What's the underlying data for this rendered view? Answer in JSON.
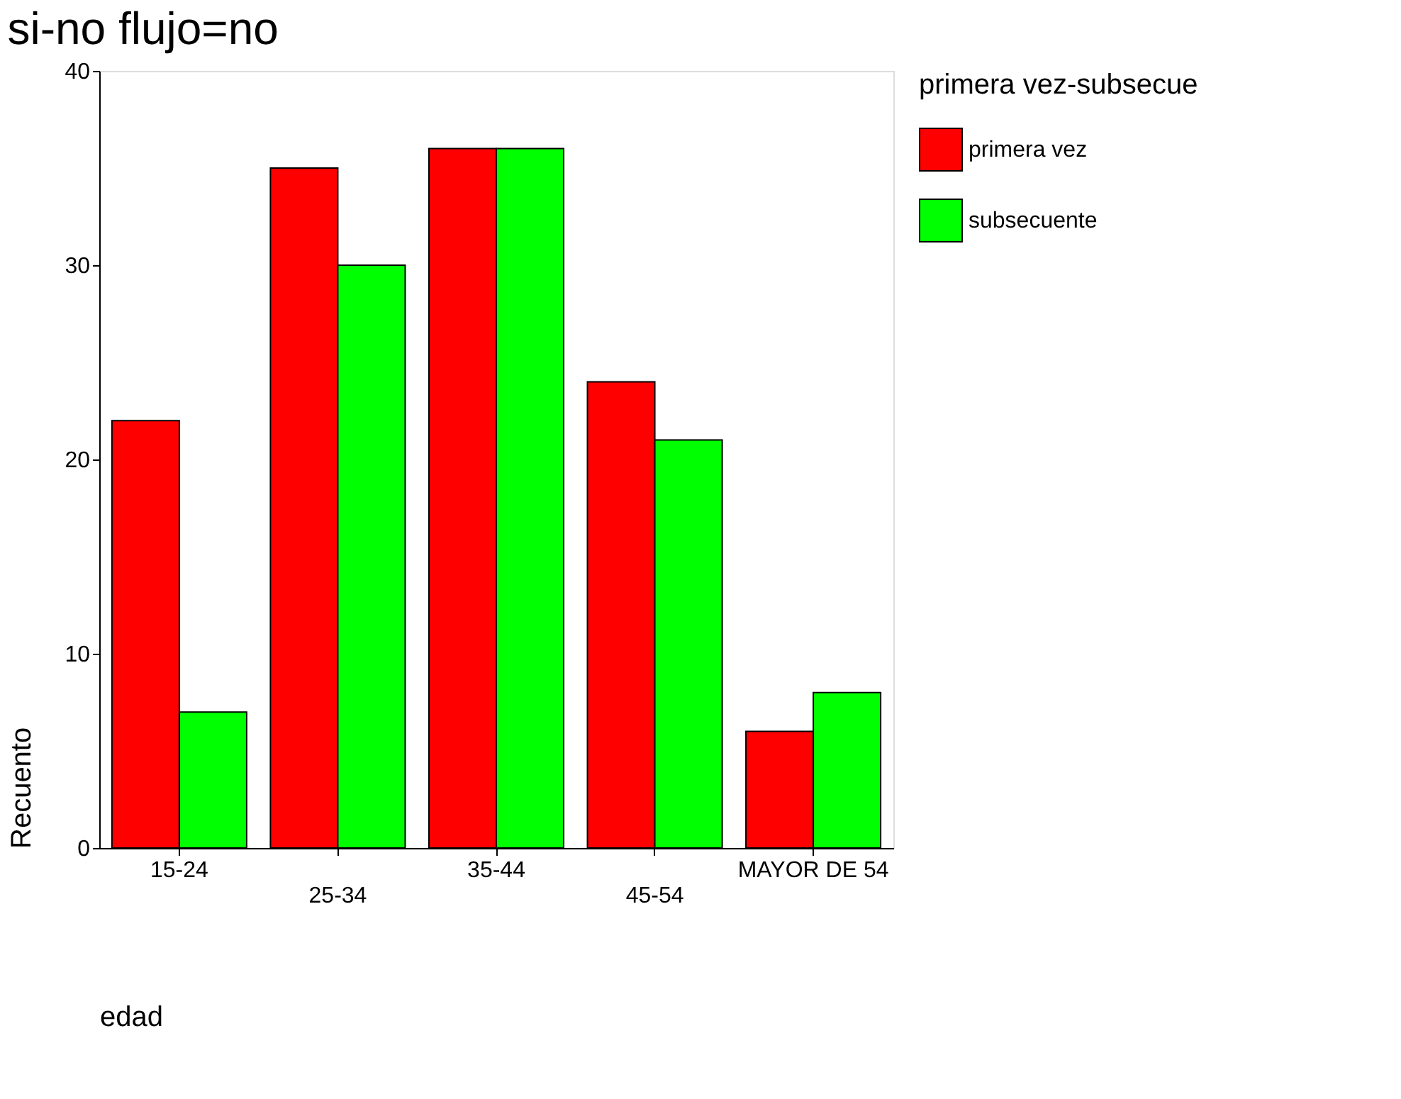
{
  "chart_data": {
    "type": "bar",
    "title": "si-no flujo=no",
    "xlabel": "edad",
    "ylabel": "Recuento",
    "legend_title": "primera vez-subsecue",
    "categories": [
      "15-24",
      "25-34",
      "35-44",
      "45-54",
      "MAYOR DE 54"
    ],
    "series": [
      {
        "name": "primera vez",
        "color": "#ff0000",
        "values": [
          22,
          35,
          36,
          24,
          6
        ]
      },
      {
        "name": "subsecuente",
        "color": "#00ff00",
        "values": [
          7,
          30,
          36,
          21,
          8
        ]
      }
    ],
    "ylim": [
      0,
      40
    ],
    "yticks": [
      0,
      10,
      20,
      30,
      40
    ],
    "grid": false,
    "legend": "right"
  }
}
